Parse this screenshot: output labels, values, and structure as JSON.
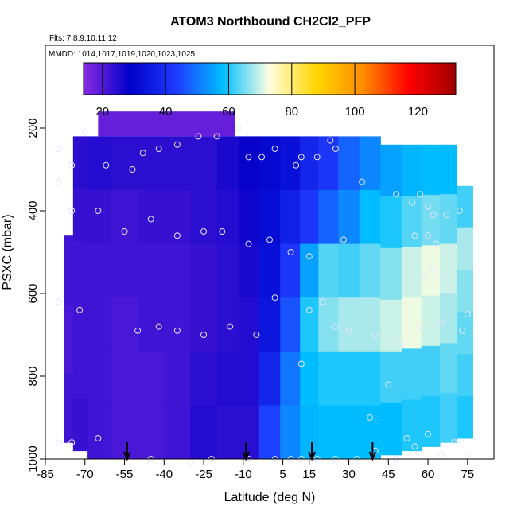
{
  "chart_data": {
    "type": "heatmap",
    "title": "ATOM3 Northbound CH2Cl2_PFP",
    "flights_label": "Flts: 7,8,9,10,11,12",
    "dates_label": "MMDD: 1014,1017,1019,1020,1023,1025",
    "xlabel": "Latitude (deg N)",
    "ylabel": "PSXC (mbar)",
    "xlim": [
      -85,
      85
    ],
    "ylim": [
      1000,
      0
    ],
    "x_ticks": [
      -85,
      -70,
      -55,
      -40,
      -25,
      -10,
      5,
      15,
      30,
      45,
      60,
      75
    ],
    "y_ticks": [
      200,
      400,
      600,
      800,
      1000
    ],
    "colorbar": {
      "range": [
        14,
        132
      ],
      "ticks": [
        20,
        40,
        60,
        80,
        100,
        120
      ],
      "colors": [
        "#8a2be2",
        "#0000c8",
        "#1e3cff",
        "#00bfff",
        "#ffffe0",
        "#ffd700",
        "#ff8c00",
        "#ff0000",
        "#a00000"
      ]
    },
    "arrows_lat": [
      -54,
      -9,
      16,
      39
    ],
    "columns": [
      {
        "lat": -76,
        "ptop": 460,
        "pbot": 960,
        "v": [
          22,
          22,
          21,
          21,
          22,
          22
        ]
      },
      {
        "lat": -73,
        "ptop": 220,
        "pbot": 980,
        "v": [
          24,
          23,
          22,
          22,
          22,
          23
        ]
      },
      {
        "lat": -65,
        "ptop": 220,
        "pbot": 1000,
        "v": [
          25,
          23,
          22,
          22,
          22,
          22
        ]
      },
      {
        "lat": -55,
        "ptop": 220,
        "pbot": 1000,
        "v": [
          24,
          22,
          22,
          21,
          21,
          21
        ]
      },
      {
        "lat": -45,
        "ptop": 220,
        "pbot": 1000,
        "v": [
          24,
          23,
          22,
          22,
          21,
          21
        ]
      },
      {
        "lat": -35,
        "ptop": 220,
        "pbot": 1000,
        "v": [
          24,
          23,
          22,
          22,
          22,
          22
        ]
      },
      {
        "lat": -25,
        "ptop": 220,
        "pbot": 1000,
        "v": [
          24,
          24,
          23,
          23,
          24,
          25
        ]
      },
      {
        "lat": -15,
        "ptop": 220,
        "pbot": 1000,
        "v": [
          26,
          25,
          24,
          24,
          25,
          24
        ]
      },
      {
        "lat": -8,
        "ptop": 220,
        "pbot": 1000,
        "v": [
          28,
          27,
          26,
          25,
          25,
          24
        ]
      },
      {
        "lat": 0,
        "ptop": 220,
        "pbot": 1000,
        "v": [
          31,
          32,
          33,
          34,
          38,
          44
        ]
      },
      {
        "lat": 8,
        "ptop": 220,
        "pbot": 1000,
        "v": [
          33,
          37,
          42,
          46,
          50,
          52
        ]
      },
      {
        "lat": 15,
        "ptop": 220,
        "pbot": 1000,
        "v": [
          38,
          42,
          55,
          60,
          58,
          57
        ]
      },
      {
        "lat": 22,
        "ptop": 220,
        "pbot": 1000,
        "v": [
          42,
          48,
          63,
          66,
          60,
          58
        ]
      },
      {
        "lat": 30,
        "ptop": 220,
        "pbot": 1000,
        "v": [
          48,
          52,
          62,
          68,
          60,
          58
        ]
      },
      {
        "lat": 38,
        "ptop": 220,
        "pbot": 1000,
        "v": [
          52,
          58,
          64,
          68,
          60,
          58
        ]
      },
      {
        "lat": 46,
        "ptop": 240,
        "pbot": 990,
        "v": [
          55,
          60,
          66,
          70,
          62,
          58
        ]
      },
      {
        "lat": 54,
        "ptop": 240,
        "pbot": 980,
        "v": [
          57,
          63,
          70,
          72,
          62,
          60
        ]
      },
      {
        "lat": 61,
        "ptop": 240,
        "pbot": 970,
        "v": [
          58,
          65,
          72,
          70,
          62,
          60
        ]
      },
      {
        "lat": 68,
        "ptop": 240,
        "pbot": 960,
        "v": [
          58,
          64,
          70,
          68,
          64,
          62
        ]
      },
      {
        "lat": 74,
        "ptop": 340,
        "pbot": 950,
        "v": [
          62,
          68,
          66,
          64,
          62,
          60
        ]
      }
    ],
    "samples": [
      [
        -70,
        210
      ],
      [
        -80,
        250
      ],
      [
        -75,
        290
      ],
      [
        -62,
        290
      ],
      [
        -52,
        300
      ],
      [
        -48,
        260
      ],
      [
        -42,
        250
      ],
      [
        -35,
        240
      ],
      [
        -27,
        220
      ],
      [
        -20,
        220
      ],
      [
        -12,
        200
      ],
      [
        -8,
        270
      ],
      [
        -3,
        270
      ],
      [
        2,
        250
      ],
      [
        10,
        290
      ],
      [
        12,
        270
      ],
      [
        18,
        270
      ],
      [
        23,
        230
      ],
      [
        25,
        250
      ],
      [
        -80,
        330
      ],
      [
        -75,
        400
      ],
      [
        -65,
        400
      ],
      [
        -55,
        450
      ],
      [
        -45,
        420
      ],
      [
        -35,
        460
      ],
      [
        -25,
        450
      ],
      [
        -18,
        450
      ],
      [
        -8,
        480
      ],
      [
        0,
        470
      ],
      [
        8,
        500
      ],
      [
        15,
        510
      ],
      [
        28,
        470
      ],
      [
        35,
        330
      ],
      [
        48,
        360
      ],
      [
        54,
        380
      ],
      [
        57,
        360
      ],
      [
        60,
        390
      ],
      [
        62,
        410
      ],
      [
        67,
        410
      ],
      [
        72,
        400
      ],
      [
        55,
        460
      ],
      [
        60,
        460
      ],
      [
        63,
        480
      ],
      [
        66,
        500
      ],
      [
        58,
        560
      ],
      [
        62,
        540
      ],
      [
        66,
        560
      ],
      [
        68,
        590
      ],
      [
        75,
        650
      ],
      [
        -80,
        620
      ],
      [
        -72,
        640
      ],
      [
        -50,
        690
      ],
      [
        -42,
        680
      ],
      [
        -35,
        690
      ],
      [
        -25,
        700
      ],
      [
        -15,
        680
      ],
      [
        -5,
        700
      ],
      [
        2,
        610
      ],
      [
        15,
        640
      ],
      [
        20,
        620
      ],
      [
        25,
        680
      ],
      [
        30,
        690
      ],
      [
        40,
        700
      ],
      [
        50,
        720
      ],
      [
        57,
        680
      ],
      [
        65,
        670
      ],
      [
        73,
        690
      ],
      [
        12,
        770
      ],
      [
        45,
        820
      ],
      [
        38,
        900
      ],
      [
        60,
        940
      ],
      [
        52,
        950
      ],
      [
        70,
        960
      ],
      [
        -80,
        960
      ],
      [
        -75,
        960
      ],
      [
        -65,
        950
      ],
      [
        -45,
        1000
      ],
      [
        -40,
        1010
      ],
      [
        -30,
        1010
      ],
      [
        -22,
        1000
      ],
      [
        -8,
        1000
      ],
      [
        2,
        1000
      ],
      [
        8,
        1000
      ],
      [
        12,
        1000
      ],
      [
        18,
        1000
      ],
      [
        25,
        1000
      ],
      [
        33,
        1000
      ],
      [
        40,
        980
      ],
      [
        48,
        1000
      ],
      [
        55,
        970
      ],
      [
        65,
        990
      ],
      [
        75,
        990
      ]
    ]
  }
}
